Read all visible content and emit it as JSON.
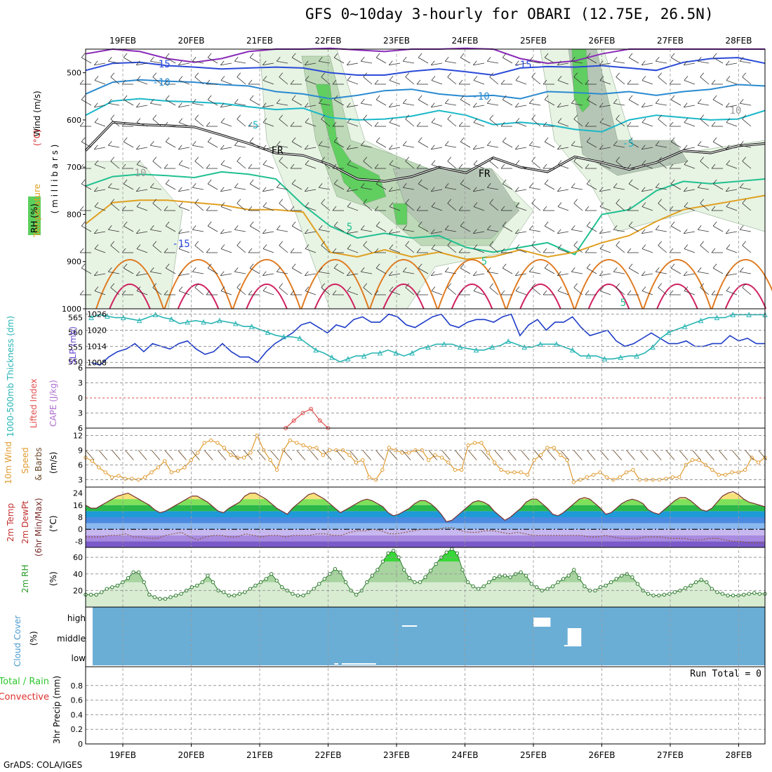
{
  "title": "GFS 0~10day 3-hourly for OBARI (12.75E, 26.5N)",
  "credit": "GrADS: COLA/IGES",
  "colors": {
    "rh_light": "#e6f3e2",
    "rh_mid": "#bcd8b5",
    "rh_gray": "#b4c4b4",
    "rh_green": "#5ccf5c",
    "freezing": "#000000",
    "slp": "#1e3cc8",
    "thickness": "#28b4b4",
    "lifted_index": "#e05050",
    "wind10": "#e09a30",
    "barb": "#6a4a2a",
    "cloud": "#6aaed6",
    "precip_total": "#2ec82e",
    "precip_conv": "#e03030"
  },
  "chart_data": [
    {
      "panel": "upper-air",
      "type": "line",
      "labels": {
        "temperature": "Temperature",
        "temperature_unit": "(°C)",
        "wind": "Wind (m/s)",
        "rh": "RH (%)",
        "yunit": "( m i l l i b a r s )"
      },
      "x_ticks": [
        "19FEB",
        "20FEB",
        "21FEB",
        "22FEB",
        "23FEB",
        "24FEB",
        "25FEB",
        "26FEB",
        "27FEB",
        "28FEB"
      ],
      "y_ticks": [
        500,
        600,
        700,
        800,
        900,
        1000
      ],
      "ylim": [
        450,
        1000
      ],
      "contour_labels": [
        "-15",
        "-10",
        "-5",
        "FR",
        "10",
        "5",
        "-15",
        "-10",
        "-5",
        "FR",
        "10",
        "5",
        "-15",
        "5"
      ],
      "isotherms": [
        {
          "name": "-20",
          "color": "#8a2ab8",
          "p": [
            460,
            450,
            455,
            470,
            478,
            470,
            455,
            450,
            450,
            448,
            452,
            455,
            450,
            450,
            448,
            450,
            470,
            480,
            475,
            460,
            450,
            450,
            450,
            450,
            450,
            450
          ]
        },
        {
          "name": "-15",
          "color": "#2a4ad8",
          "p": [
            495,
            480,
            478,
            485,
            488,
            492,
            490,
            488,
            490,
            500,
            505,
            505,
            497,
            492,
            498,
            505,
            490,
            487,
            488,
            485,
            490,
            495,
            478,
            470,
            468,
            480
          ]
        },
        {
          "name": "-10",
          "color": "#2a8ad0",
          "p": [
            545,
            520,
            515,
            518,
            520,
            525,
            528,
            540,
            545,
            555,
            548,
            538,
            535,
            545,
            550,
            548,
            555,
            540,
            542,
            545,
            540,
            548,
            540,
            535,
            525,
            528
          ]
        },
        {
          "name": "-5",
          "color": "#1ab8c8",
          "p": [
            590,
            560,
            555,
            560,
            562,
            565,
            572,
            578,
            575,
            595,
            600,
            598,
            592,
            580,
            590,
            610,
            605,
            610,
            620,
            625,
            600,
            590,
            595,
            600,
            598,
            580
          ]
        },
        {
          "name": "FR",
          "color": "#000000",
          "p": [
            665,
            605,
            610,
            612,
            615,
            632,
            650,
            670,
            675,
            695,
            725,
            730,
            720,
            700,
            712,
            680,
            700,
            710,
            678,
            690,
            705,
            690,
            665,
            670,
            655,
            650
          ]
        },
        {
          "name": "5",
          "color": "#20c090",
          "p": [
            740,
            720,
            715,
            718,
            722,
            710,
            715,
            725,
            780,
            825,
            850,
            840,
            850,
            845,
            870,
            880,
            870,
            860,
            885,
            800,
            790,
            750,
            730,
            735,
            730,
            725
          ]
        },
        {
          "name": "10",
          "color": "#e0a020",
          "p": [
            820,
            775,
            770,
            770,
            775,
            780,
            790,
            790,
            795,
            880,
            890,
            875,
            890,
            880,
            895,
            890,
            875,
            890,
            880,
            860,
            845,
            815,
            790,
            780,
            770,
            760
          ]
        }
      ],
      "rh_regions": [
        "light",
        "mid",
        "gray",
        "green"
      ]
    },
    {
      "panel": "slp-thickness",
      "type": "line",
      "labels": {
        "left": "1000-500mb Thickness (dm)",
        "right": "SLP (mb)"
      },
      "left_ticks": [
        550,
        555,
        560,
        565
      ],
      "right_ticks": [
        1008,
        1014,
        1020,
        1026
      ],
      "ylim_thickness": [
        548,
        568
      ],
      "ylim_slp": [
        1006,
        1028
      ],
      "series": [
        {
          "name": "SLP",
          "axis": "right",
          "values": [
            1008,
            1007,
            1010,
            1012,
            1013,
            1015,
            1012,
            1015,
            1014,
            1013,
            1015,
            1016,
            1013,
            1011,
            1012,
            1015,
            1012,
            1010,
            1010,
            1008,
            1012,
            1015,
            1017,
            1019,
            1022,
            1023,
            1021,
            1019,
            1022,
            1021,
            1024,
            1025,
            1023,
            1023,
            1026,
            1025,
            1022,
            1021,
            1023,
            1025,
            1026,
            1022,
            1021,
            1023,
            1024,
            1024,
            1023,
            1025,
            1026,
            1018,
            1022,
            1024,
            1020,
            1023,
            1023,
            1025,
            1021,
            1018,
            1019,
            1020,
            1016,
            1014,
            1015,
            1017,
            1019,
            1017,
            1015,
            1015,
            1016,
            1014,
            1014,
            1015,
            1015,
            1018,
            1016,
            1017,
            1015,
            1015
          ]
        },
        {
          "name": "Thickness",
          "axis": "left",
          "values": [
            565,
            566,
            565.5,
            565,
            565,
            564.5,
            564,
            565,
            566,
            565,
            564.5,
            563,
            563.5,
            564,
            563.5,
            563,
            564,
            563.5,
            563,
            562,
            562,
            561,
            560,
            559,
            558.5,
            558.5,
            558,
            556,
            554,
            553,
            551.5,
            550,
            551,
            552,
            552,
            553,
            553,
            554,
            553,
            552,
            553,
            554.5,
            555,
            556,
            556,
            556,
            555,
            554.5,
            554,
            554,
            555,
            555.5,
            557,
            556,
            555,
            555,
            556,
            556,
            556,
            555,
            554,
            552,
            552,
            552,
            551,
            551,
            551.5,
            552,
            552,
            553,
            555,
            558,
            560,
            561,
            562,
            563,
            564,
            565,
            565,
            565,
            566,
            566,
            566,
            566,
            566
          ]
        }
      ]
    },
    {
      "panel": "lifted-index-cape",
      "type": "line",
      "labels": {
        "left": "Lifted Index",
        "right": "CAPE (J/kg)"
      },
      "y_ticks": [
        -6,
        -3,
        0,
        3,
        6
      ],
      "ylim": [
        -6,
        6
      ],
      "lifted_index": {
        "x": [
          21.38,
          21.5,
          21.63,
          21.75,
          21.88,
          22.0
        ],
        "values": [
          6,
          4.5,
          3,
          2.2,
          4.5,
          6
        ]
      }
    },
    {
      "panel": "wind10",
      "type": "line",
      "labels": {
        "left": "10m Wind",
        "mid": "Speed",
        "right": "& Barbs",
        "unit": "(m/s)"
      },
      "y_ticks": [
        3,
        6,
        9,
        12
      ],
      "ylim": [
        1.5,
        13.5
      ],
      "series": [
        {
          "name": "10m Wind Speed",
          "values": [
            7.5,
            6.8,
            5.5,
            4.5,
            3.5,
            3.8,
            3.2,
            3.2,
            3,
            3.5,
            4.5,
            5.5,
            6.8,
            4.5,
            4.8,
            5.5,
            7,
            8.5,
            10.5,
            11,
            10.5,
            9.5,
            8,
            7.5,
            7.5,
            8.5,
            12,
            9,
            7,
            5,
            9,
            11,
            10.5,
            10,
            9.5,
            9.5,
            8,
            9,
            9,
            9,
            8,
            6.5,
            7,
            3.5,
            3,
            5,
            9.5,
            9,
            8.5,
            8.5,
            9,
            9,
            7,
            8,
            7.5,
            6.5,
            5,
            5,
            10,
            10.5,
            10.5,
            8.5,
            6.5,
            5,
            4.5,
            4.5,
            4.5,
            4,
            7,
            8,
            9.5,
            9.5,
            8,
            7,
            2.5,
            3,
            3.5,
            4,
            4.5,
            3.5,
            3,
            3.5,
            4.5,
            5,
            3,
            3,
            3,
            3,
            3.2,
            3.5,
            3.5,
            6,
            7,
            7,
            6,
            5,
            4,
            4,
            4.5,
            4.5,
            5,
            7.5,
            6.5,
            7.5
          ]
        }
      ]
    },
    {
      "panel": "temperature",
      "type": "area",
      "labels": {
        "left": "2m Temp",
        "mid": "2m DewPt",
        "right": "(6hr Min/Max)",
        "unit": "(°C)"
      },
      "y_ticks": [
        -8,
        0,
        8,
        16,
        24
      ],
      "ylim": [
        -12,
        28
      ],
      "series": [
        {
          "name": "2m Temp",
          "values": [
            16,
            14,
            14,
            16,
            18,
            20,
            22,
            23,
            24,
            22,
            20,
            18,
            16,
            13,
            11,
            12,
            14,
            16,
            18,
            20,
            22,
            22,
            20,
            18,
            15,
            12,
            11,
            14,
            16,
            18,
            22,
            24,
            24,
            22,
            20,
            17,
            14,
            12,
            10,
            14,
            17,
            20,
            23,
            24,
            22,
            20,
            17,
            14,
            11,
            13,
            15,
            17,
            19,
            20,
            19,
            17,
            15,
            11,
            9,
            10,
            12,
            14,
            17,
            19,
            19,
            17,
            14,
            10,
            5,
            6,
            9,
            12,
            15,
            18,
            19,
            18,
            16,
            12,
            9,
            6,
            8,
            11,
            14,
            18,
            20,
            20,
            17,
            14,
            10,
            9,
            11,
            14,
            17,
            20,
            21,
            20,
            17,
            14,
            10,
            11,
            14,
            17,
            19,
            20,
            19,
            17,
            13,
            11,
            10,
            13,
            16,
            19,
            21,
            21,
            19,
            16,
            13,
            12,
            14,
            18,
            22,
            24,
            25,
            23,
            20,
            18,
            17,
            16,
            15
          ]
        },
        {
          "name": "2m DewPt",
          "values": [
            -5,
            -5,
            -5,
            -4,
            -4,
            -3,
            -5,
            -5,
            -6,
            -6,
            -4,
            -3,
            -2,
            -5,
            -7,
            -5,
            -4,
            -4,
            -5,
            -5,
            -3,
            -4,
            -5,
            -4,
            -4,
            -5,
            -4,
            -4,
            -4,
            -3,
            -3,
            -4,
            -4,
            -2,
            -1,
            -1,
            0,
            -1,
            -3,
            -3,
            -2,
            -1,
            0,
            0,
            0,
            1,
            1,
            -1,
            -2,
            -2,
            -1,
            -1,
            -2,
            -3,
            -2,
            -3,
            -4,
            -4,
            -4,
            -4,
            -4,
            -4,
            -4,
            -5,
            -5,
            -4,
            -5,
            -6,
            -6,
            -6,
            -5,
            -5,
            -5,
            -6,
            -6,
            -6,
            -7,
            -7,
            -6,
            -6,
            -7,
            -8,
            -8,
            -9,
            -9,
            -9
          ]
        }
      ],
      "bands": [
        24,
        20,
        16,
        12,
        8,
        4,
        0,
        -4,
        -8
      ]
    },
    {
      "panel": "rh2m",
      "type": "area",
      "labels": {
        "left": "2m RH",
        "unit": "(%)"
      },
      "y_ticks": [
        20,
        40,
        60
      ],
      "ylim": [
        0,
        72
      ],
      "series": [
        {
          "name": "2m RH",
          "values": [
            15,
            15,
            15,
            18,
            22,
            24,
            26,
            30,
            35,
            42,
            42,
            30,
            15,
            12,
            10,
            10,
            12,
            14,
            16,
            20,
            24,
            26,
            30,
            38,
            30,
            20,
            18,
            14,
            14,
            16,
            18,
            22,
            26,
            30,
            34,
            40,
            32,
            24,
            20,
            16,
            14,
            14,
            18,
            22,
            28,
            34,
            40,
            46,
            42,
            30,
            20,
            15,
            20,
            30,
            38,
            45,
            55,
            65,
            68,
            60,
            45,
            35,
            30,
            30,
            36,
            44,
            52,
            60,
            66,
            70,
            65,
            45,
            30,
            25,
            22,
            25,
            30,
            35,
            37,
            38,
            36,
            40,
            42,
            38,
            28,
            24,
            20,
            22,
            25,
            30,
            34,
            38,
            45,
            35,
            25,
            20,
            20,
            24,
            26,
            30,
            34,
            38,
            40,
            36,
            28,
            20,
            16,
            14,
            14,
            15,
            16,
            18,
            20,
            23,
            26,
            30,
            33,
            30,
            22,
            18,
            16,
            14,
            14,
            14,
            15,
            16,
            17,
            16,
            16
          ]
        }
      ]
    },
    {
      "panel": "cloud",
      "type": "bar",
      "labels": {
        "left": "Cloud Cover",
        "unit": "(%)",
        "levels": [
          "high",
          "middle",
          "low"
        ]
      },
      "white_patches": [
        {
          "level": "high",
          "x": [
            25.0,
            25.25
          ],
          "pct": 100
        },
        {
          "level": "high",
          "x": [
            23.08,
            23.3
          ],
          "pct": 5
        },
        {
          "level": "middle",
          "x": [
            25.5,
            25.7
          ],
          "pct": 100
        },
        {
          "level": "middle",
          "x": [
            25.45,
            25.7
          ],
          "pct": 5
        },
        {
          "level": "low",
          "x": [
            22.09,
            22.15
          ],
          "pct": 5
        },
        {
          "level": "low",
          "x": [
            22.2,
            22.7
          ],
          "pct": 5
        }
      ]
    },
    {
      "panel": "precip",
      "type": "bar",
      "labels": {
        "left_total": "Total / Rain",
        "left_conv": "Convective",
        "axis": "3hr Precip (mm)",
        "run_total": "Run Total = 0"
      },
      "y_ticks": [
        0,
        0.2,
        0.4,
        0.6,
        0.8
      ],
      "ylim": [
        0,
        1
      ],
      "values": []
    }
  ]
}
